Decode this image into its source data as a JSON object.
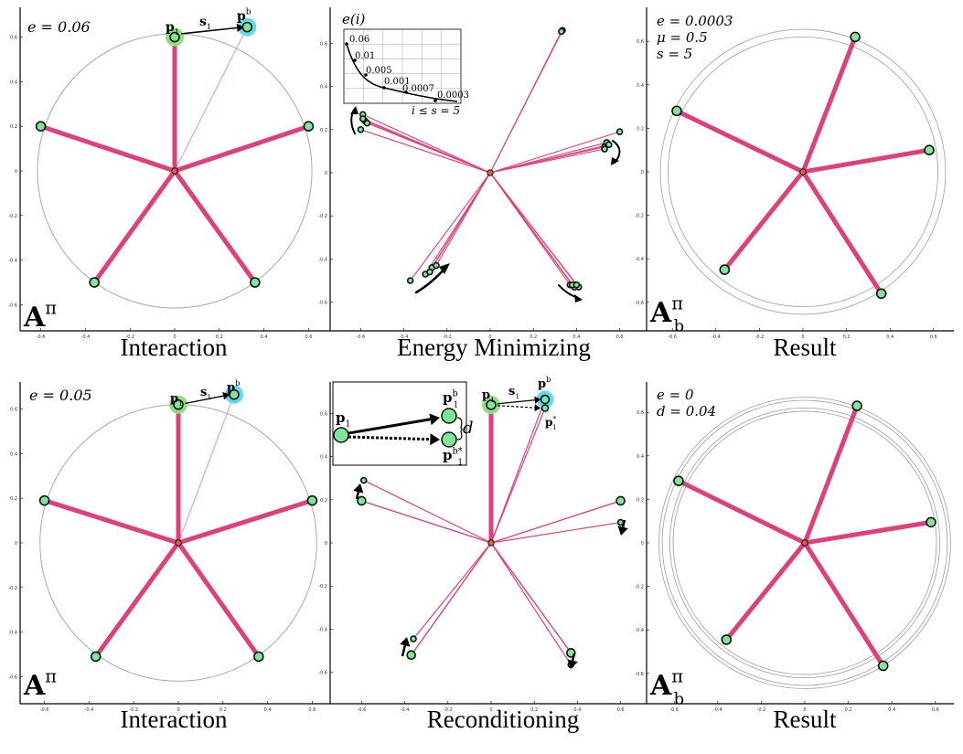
{
  "captions": {
    "top": [
      "Interaction",
      "Energy Minimizing",
      "Result"
    ],
    "bottom": [
      "Interaction",
      "Reconditioning",
      "Result"
    ]
  },
  "panels": {
    "top_interaction": {
      "energy": "e = 0.06",
      "label": "A",
      "label_sup": "π",
      "p1": "p",
      "p1_sub": "1",
      "s1": "s",
      "s1_sub": "1",
      "pb": "p",
      "pb_sup": "b"
    },
    "top_energy": {
      "inset_title": "e(i)",
      "inset_values": [
        "0.06",
        "0.01",
        "0.005",
        "0.001",
        "0.0007",
        "0.0003"
      ],
      "inset_xlabel": "i ≤ s = 5"
    },
    "top_result": {
      "energy": "e = 0.0003",
      "mu": "μ = 0.5",
      "s": "s = 5",
      "label": "A",
      "label_sup": "π",
      "label_sub": "b"
    },
    "bottom_interaction": {
      "energy": "e = 0.05",
      "label": "A",
      "label_sup": "π"
    },
    "bottom_recondition": {
      "inset_p1": "p",
      "inset_pb": "p",
      "inset_pbstar": "p",
      "d": "d"
    },
    "bottom_result": {
      "energy": "e = 0",
      "d": "d = 0.04",
      "label": "A",
      "label_sup": "π",
      "label_sub": "b"
    }
  },
  "axis_ticks": {
    "y": [
      "0.6",
      "0.4",
      "0.2",
      "0",
      "-0.2",
      "-0.4",
      "-0.6"
    ],
    "x": [
      "-0.6",
      "-0.4",
      "-0.2",
      "0",
      "0.2",
      "0.4",
      "0.6"
    ]
  },
  "colors": {
    "spoke": "#e0407a",
    "spoke_light": "#f2a0bf",
    "node_fill": "#7fe59a",
    "node_stroke": "#111111",
    "highlight_green": "#8de07f",
    "highlight_cyan": "#5fd8f0",
    "circle": "#a8a8a8",
    "center": "#d9663a"
  }
}
